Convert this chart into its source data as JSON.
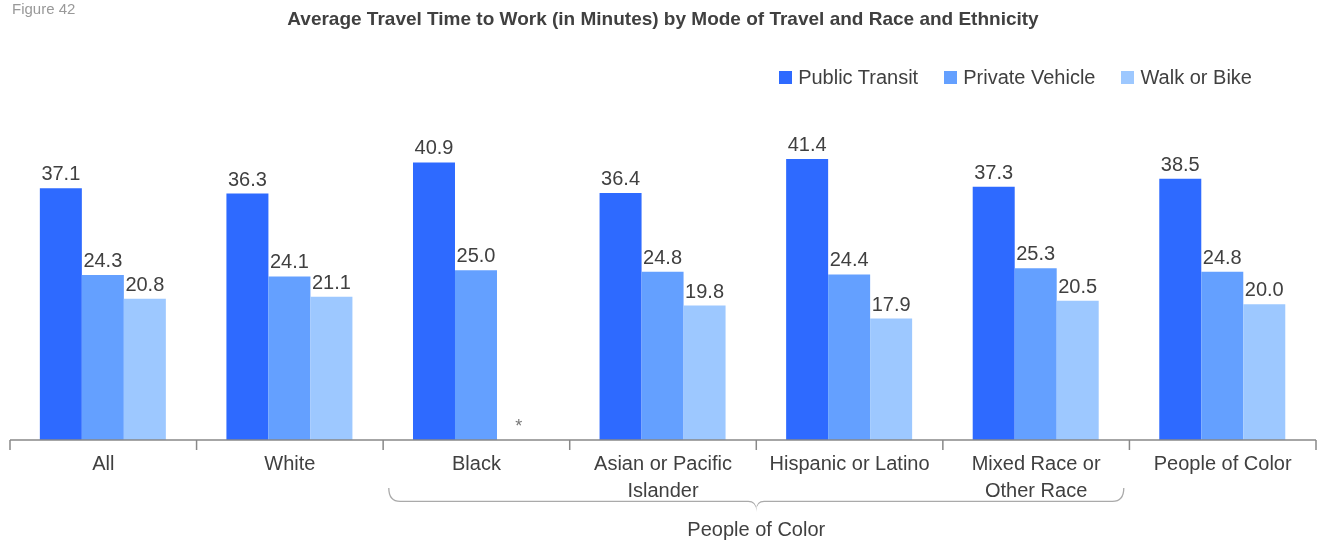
{
  "chart_data": {
    "type": "bar",
    "title": "Average Travel Time to Work (in Minutes) by Mode of Travel and Race and Ethnicity",
    "categories": [
      "All",
      "White",
      "Black",
      "Asian or Pacific Islander",
      "Hispanic or Latino",
      "Mixed Race or Other Race",
      "People of Color"
    ],
    "series": [
      {
        "name": "Public Transit",
        "color": "#2e6aff",
        "values": [
          37.1,
          36.3,
          40.9,
          36.4,
          41.4,
          37.3,
          38.5
        ],
        "value_labels": [
          "37.1",
          "36.3",
          "40.9",
          "36.4",
          "41.4",
          "37.3",
          "38.5"
        ]
      },
      {
        "name": "Private Vehicle",
        "color": "#64a0ff",
        "values": [
          24.3,
          24.1,
          25.0,
          24.8,
          24.4,
          25.3,
          24.8
        ],
        "value_labels": [
          "24.3",
          "24.1",
          "25.0",
          "24.8",
          "24.4",
          "25.3",
          "24.8"
        ]
      },
      {
        "name": "Walk or Bike",
        "color": "#9dc8ff",
        "values": [
          20.8,
          21.1,
          null,
          19.8,
          17.9,
          20.5,
          20.0
        ],
        "value_labels": [
          "20.8",
          "21.1",
          null,
          "19.8",
          "17.9",
          "20.5",
          "20.0"
        ]
      }
    ],
    "legend": "top right",
    "annotations": [
      "Figure 42",
      "*",
      "People of Color"
    ]
  }
}
